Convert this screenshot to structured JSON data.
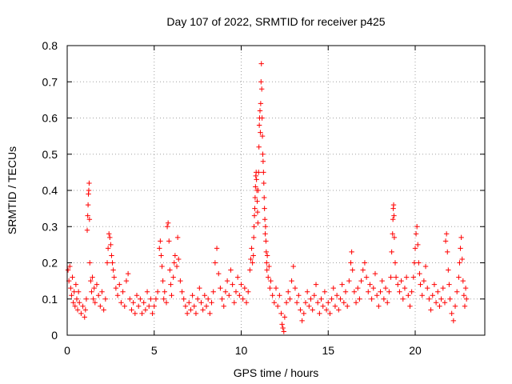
{
  "chart_data": {
    "type": "scatter",
    "title": "Day 107 of 2022, SRMTID for receiver p425",
    "xlabel": "GPS time / hours",
    "ylabel": "SRMTID / TECUs",
    "xlim": [
      0,
      24
    ],
    "ylim": [
      0,
      0.8
    ],
    "xticks": [
      0,
      5,
      10,
      15,
      20
    ],
    "yticks": [
      0,
      0.1,
      0.2,
      0.3,
      0.4,
      0.5,
      0.6,
      0.7,
      0.8
    ],
    "xtick_labels": [
      "0",
      "5",
      "10",
      "15",
      "20"
    ],
    "ytick_labels": [
      "0",
      "0.1",
      "0.2",
      "0.3",
      "0.4",
      "0.5",
      "0.6",
      "0.7",
      "0.8"
    ],
    "grid": true,
    "marker": "+",
    "color": "#ff0000",
    "series": [
      {
        "name": "SRMTID",
        "points": [
          [
            0.05,
            0.18
          ],
          [
            0.1,
            0.15
          ],
          [
            0.15,
            0.19
          ],
          [
            0.2,
            0.13
          ],
          [
            0.25,
            0.11
          ],
          [
            0.3,
            0.16
          ],
          [
            0.35,
            0.09
          ],
          [
            0.4,
            0.12
          ],
          [
            0.45,
            0.08
          ],
          [
            0.5,
            0.14
          ],
          [
            0.55,
            0.1
          ],
          [
            0.6,
            0.07
          ],
          [
            0.65,
            0.12
          ],
          [
            0.7,
            0.09
          ],
          [
            0.8,
            0.06
          ],
          [
            0.9,
            0.08
          ],
          [
            1.0,
            0.05
          ],
          [
            1.05,
            0.07
          ],
          [
            1.1,
            0.1
          ],
          [
            1.15,
            0.29
          ],
          [
            1.18,
            0.33
          ],
          [
            1.2,
            0.36
          ],
          [
            1.22,
            0.39
          ],
          [
            1.24,
            0.4
          ],
          [
            1.26,
            0.42
          ],
          [
            1.28,
            0.32
          ],
          [
            1.3,
            0.2
          ],
          [
            1.35,
            0.15
          ],
          [
            1.4,
            0.12
          ],
          [
            1.45,
            0.16
          ],
          [
            1.5,
            0.1
          ],
          [
            1.55,
            0.13
          ],
          [
            1.6,
            0.09
          ],
          [
            1.7,
            0.14
          ],
          [
            1.8,
            0.11
          ],
          [
            1.9,
            0.08
          ],
          [
            2.0,
            0.12
          ],
          [
            2.1,
            0.07
          ],
          [
            2.2,
            0.1
          ],
          [
            2.3,
            0.2
          ],
          [
            2.35,
            0.24
          ],
          [
            2.4,
            0.28
          ],
          [
            2.45,
            0.27
          ],
          [
            2.5,
            0.25
          ],
          [
            2.55,
            0.22
          ],
          [
            2.6,
            0.2
          ],
          [
            2.65,
            0.18
          ],
          [
            2.7,
            0.16
          ],
          [
            2.8,
            0.13
          ],
          [
            2.9,
            0.11
          ],
          [
            3.0,
            0.14
          ],
          [
            3.1,
            0.09
          ],
          [
            3.2,
            0.12
          ],
          [
            3.3,
            0.08
          ],
          [
            3.4,
            0.15
          ],
          [
            3.5,
            0.17
          ],
          [
            3.6,
            0.1
          ],
          [
            3.7,
            0.07
          ],
          [
            3.8,
            0.09
          ],
          [
            3.9,
            0.06
          ],
          [
            4.0,
            0.11
          ],
          [
            4.1,
            0.08
          ],
          [
            4.2,
            0.1
          ],
          [
            4.3,
            0.06
          ],
          [
            4.4,
            0.09
          ],
          [
            4.5,
            0.07
          ],
          [
            4.6,
            0.12
          ],
          [
            4.7,
            0.08
          ],
          [
            4.8,
            0.1
          ],
          [
            4.9,
            0.06
          ],
          [
            5.0,
            0.08
          ],
          [
            5.1,
            0.1
          ],
          [
            5.2,
            0.12
          ],
          [
            5.3,
            0.24
          ],
          [
            5.35,
            0.26
          ],
          [
            5.4,
            0.22
          ],
          [
            5.45,
            0.19
          ],
          [
            5.5,
            0.15
          ],
          [
            5.55,
            0.1
          ],
          [
            5.6,
            0.12
          ],
          [
            5.7,
            0.09
          ],
          [
            5.75,
            0.3
          ],
          [
            5.8,
            0.31
          ],
          [
            5.85,
            0.26
          ],
          [
            5.9,
            0.18
          ],
          [
            5.95,
            0.14
          ],
          [
            6.0,
            0.11
          ],
          [
            6.1,
            0.16
          ],
          [
            6.15,
            0.2
          ],
          [
            6.2,
            0.22
          ],
          [
            6.3,
            0.19
          ],
          [
            6.35,
            0.27
          ],
          [
            6.4,
            0.21
          ],
          [
            6.5,
            0.15
          ],
          [
            6.6,
            0.12
          ],
          [
            6.7,
            0.1
          ],
          [
            6.8,
            0.08
          ],
          [
            6.9,
            0.06
          ],
          [
            7.0,
            0.09
          ],
          [
            7.1,
            0.07
          ],
          [
            7.2,
            0.11
          ],
          [
            7.3,
            0.08
          ],
          [
            7.4,
            0.06
          ],
          [
            7.5,
            0.1
          ],
          [
            7.6,
            0.13
          ],
          [
            7.7,
            0.09
          ],
          [
            7.8,
            0.07
          ],
          [
            7.9,
            0.11
          ],
          [
            8.0,
            0.08
          ],
          [
            8.1,
            0.1
          ],
          [
            8.2,
            0.06
          ],
          [
            8.3,
            0.09
          ],
          [
            8.4,
            0.12
          ],
          [
            8.5,
            0.2
          ],
          [
            8.6,
            0.24
          ],
          [
            8.7,
            0.17
          ],
          [
            8.8,
            0.13
          ],
          [
            8.9,
            0.1
          ],
          [
            9.0,
            0.08
          ],
          [
            9.1,
            0.12
          ],
          [
            9.2,
            0.15
          ],
          [
            9.3,
            0.11
          ],
          [
            9.4,
            0.18
          ],
          [
            9.5,
            0.14
          ],
          [
            9.6,
            0.09
          ],
          [
            9.7,
            0.12
          ],
          [
            9.8,
            0.16
          ],
          [
            9.9,
            0.11
          ],
          [
            10.0,
            0.14
          ],
          [
            10.1,
            0.1
          ],
          [
            10.2,
            0.13
          ],
          [
            10.3,
            0.09
          ],
          [
            10.4,
            0.12
          ],
          [
            10.5,
            0.18
          ],
          [
            10.55,
            0.21
          ],
          [
            10.6,
            0.24
          ],
          [
            10.65,
            0.2
          ],
          [
            10.7,
            0.22
          ],
          [
            10.72,
            0.27
          ],
          [
            10.74,
            0.3
          ],
          [
            10.76,
            0.33
          ],
          [
            10.78,
            0.35
          ],
          [
            10.8,
            0.38
          ],
          [
            10.82,
            0.41
          ],
          [
            10.84,
            0.44
          ],
          [
            10.86,
            0.45
          ],
          [
            10.88,
            0.43
          ],
          [
            10.9,
            0.4
          ],
          [
            10.92,
            0.37
          ],
          [
            10.94,
            0.34
          ],
          [
            10.96,
            0.31
          ],
          [
            10.98,
            0.4
          ],
          [
            11.0,
            0.45
          ],
          [
            11.02,
            0.52
          ],
          [
            11.04,
            0.58
          ],
          [
            11.06,
            0.6
          ],
          [
            11.08,
            0.62
          ],
          [
            11.1,
            0.56
          ],
          [
            11.12,
            0.64
          ],
          [
            11.14,
            0.7
          ],
          [
            11.16,
            0.75
          ],
          [
            11.18,
            0.68
          ],
          [
            11.2,
            0.6
          ],
          [
            11.22,
            0.55
          ],
          [
            11.24,
            0.5
          ],
          [
            11.26,
            0.48
          ],
          [
            11.28,
            0.45
          ],
          [
            11.3,
            0.42
          ],
          [
            11.32,
            0.38
          ],
          [
            11.34,
            0.35
          ],
          [
            11.36,
            0.32
          ],
          [
            11.38,
            0.28
          ],
          [
            11.4,
            0.3
          ],
          [
            11.42,
            0.26
          ],
          [
            11.44,
            0.23
          ],
          [
            11.46,
            0.2
          ],
          [
            11.48,
            0.18
          ],
          [
            11.5,
            0.22
          ],
          [
            11.55,
            0.16
          ],
          [
            11.6,
            0.19
          ],
          [
            11.65,
            0.13
          ],
          [
            11.7,
            0.15
          ],
          [
            11.8,
            0.11
          ],
          [
            11.9,
            0.09
          ],
          [
            12.0,
            0.13
          ],
          [
            12.1,
            0.08
          ],
          [
            12.2,
            0.11
          ],
          [
            12.3,
            0.06
          ],
          [
            12.35,
            0.03
          ],
          [
            12.4,
            0.02
          ],
          [
            12.45,
            0.01
          ],
          [
            12.5,
            0.05
          ],
          [
            12.6,
            0.09
          ],
          [
            12.7,
            0.12
          ],
          [
            12.8,
            0.1
          ],
          [
            12.9,
            0.15
          ],
          [
            13.0,
            0.19
          ],
          [
            13.1,
            0.13
          ],
          [
            13.2,
            0.09
          ],
          [
            13.3,
            0.11
          ],
          [
            13.4,
            0.07
          ],
          [
            13.5,
            0.04
          ],
          [
            13.6,
            0.06
          ],
          [
            13.7,
            0.09
          ],
          [
            13.8,
            0.12
          ],
          [
            13.9,
            0.08
          ],
          [
            14.0,
            0.1
          ],
          [
            14.1,
            0.07
          ],
          [
            14.2,
            0.11
          ],
          [
            14.3,
            0.14
          ],
          [
            14.4,
            0.09
          ],
          [
            14.5,
            0.06
          ],
          [
            14.6,
            0.1
          ],
          [
            14.7,
            0.08
          ],
          [
            14.8,
            0.12
          ],
          [
            14.9,
            0.07
          ],
          [
            15.0,
            0.09
          ],
          [
            15.1,
            0.06
          ],
          [
            15.2,
            0.1
          ],
          [
            15.3,
            0.13
          ],
          [
            15.4,
            0.08
          ],
          [
            15.5,
            0.11
          ],
          [
            15.6,
            0.07
          ],
          [
            15.7,
            0.1
          ],
          [
            15.8,
            0.14
          ],
          [
            15.9,
            0.09
          ],
          [
            16.0,
            0.12
          ],
          [
            16.1,
            0.08
          ],
          [
            16.2,
            0.15
          ],
          [
            16.3,
            0.2
          ],
          [
            16.35,
            0.23
          ],
          [
            16.4,
            0.18
          ],
          [
            16.5,
            0.12
          ],
          [
            16.6,
            0.09
          ],
          [
            16.7,
            0.13
          ],
          [
            16.8,
            0.1
          ],
          [
            16.9,
            0.15
          ],
          [
            17.0,
            0.18
          ],
          [
            17.1,
            0.2
          ],
          [
            17.2,
            0.16
          ],
          [
            17.3,
            0.12
          ],
          [
            17.4,
            0.14
          ],
          [
            17.5,
            0.1
          ],
          [
            17.6,
            0.13
          ],
          [
            17.7,
            0.17
          ],
          [
            17.8,
            0.11
          ],
          [
            17.9,
            0.08
          ],
          [
            18.0,
            0.12
          ],
          [
            18.1,
            0.15
          ],
          [
            18.2,
            0.1
          ],
          [
            18.3,
            0.13
          ],
          [
            18.4,
            0.09
          ],
          [
            18.5,
            0.12
          ],
          [
            18.6,
            0.16
          ],
          [
            18.65,
            0.23
          ],
          [
            18.7,
            0.28
          ],
          [
            18.72,
            0.32
          ],
          [
            18.74,
            0.35
          ],
          [
            18.76,
            0.36
          ],
          [
            18.78,
            0.33
          ],
          [
            18.8,
            0.27
          ],
          [
            18.85,
            0.2
          ],
          [
            18.9,
            0.16
          ],
          [
            19.0,
            0.14
          ],
          [
            19.1,
            0.12
          ],
          [
            19.2,
            0.15
          ],
          [
            19.3,
            0.1
          ],
          [
            19.4,
            0.13
          ],
          [
            19.5,
            0.16
          ],
          [
            19.6,
            0.11
          ],
          [
            19.7,
            0.08
          ],
          [
            19.8,
            0.12
          ],
          [
            19.9,
            0.16
          ],
          [
            19.95,
            0.2
          ],
          [
            20.0,
            0.24
          ],
          [
            20.05,
            0.28
          ],
          [
            20.1,
            0.3
          ],
          [
            20.15,
            0.25
          ],
          [
            20.2,
            0.2
          ],
          [
            20.25,
            0.17
          ],
          [
            20.3,
            0.14
          ],
          [
            20.4,
            0.11
          ],
          [
            20.5,
            0.15
          ],
          [
            20.6,
            0.19
          ],
          [
            20.7,
            0.13
          ],
          [
            20.8,
            0.1
          ],
          [
            20.9,
            0.07
          ],
          [
            21.0,
            0.11
          ],
          [
            21.1,
            0.14
          ],
          [
            21.2,
            0.09
          ],
          [
            21.3,
            0.12
          ],
          [
            21.4,
            0.08
          ],
          [
            21.5,
            0.1
          ],
          [
            21.6,
            0.13
          ],
          [
            21.7,
            0.09
          ],
          [
            21.75,
            0.26
          ],
          [
            21.8,
            0.28
          ],
          [
            21.85,
            0.23
          ],
          [
            21.9,
            0.18
          ],
          [
            21.95,
            0.14
          ],
          [
            22.0,
            0.1
          ],
          [
            22.1,
            0.06
          ],
          [
            22.2,
            0.04
          ],
          [
            22.3,
            0.08
          ],
          [
            22.4,
            0.12
          ],
          [
            22.5,
            0.16
          ],
          [
            22.55,
            0.2
          ],
          [
            22.6,
            0.24
          ],
          [
            22.65,
            0.27
          ],
          [
            22.7,
            0.21
          ],
          [
            22.75,
            0.15
          ],
          [
            22.8,
            0.11
          ],
          [
            22.85,
            0.08
          ],
          [
            22.9,
            0.13
          ],
          [
            22.95,
            0.1
          ]
        ]
      }
    ]
  }
}
